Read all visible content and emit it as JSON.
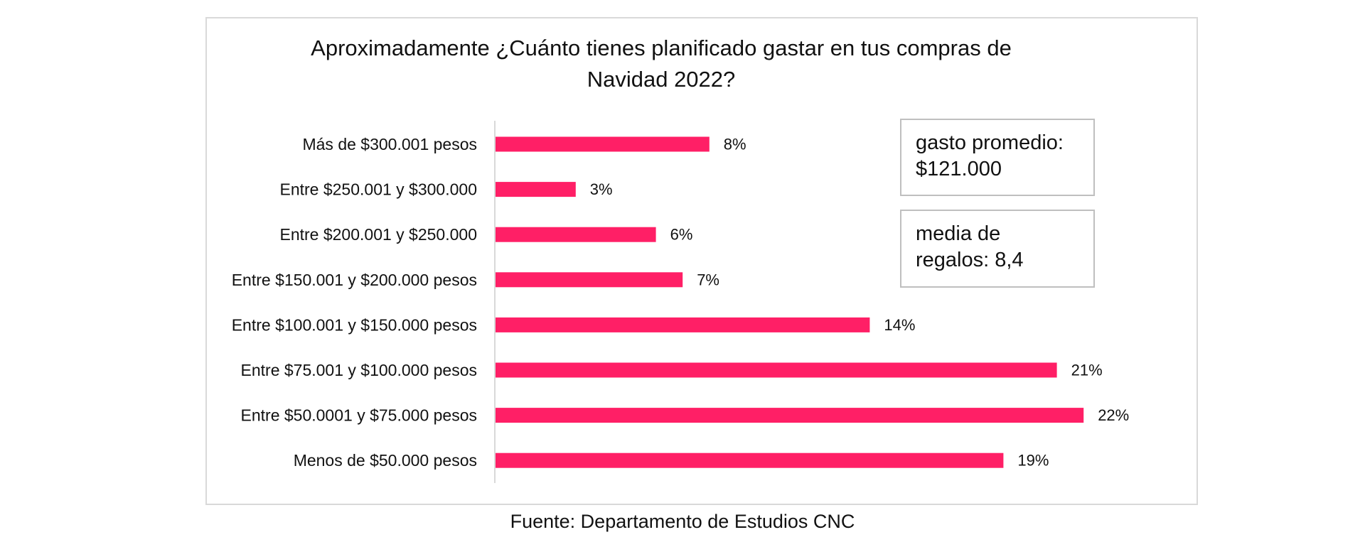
{
  "chart_data": {
    "type": "bar",
    "orientation": "horizontal",
    "title_line1": "Aproximadamente ¿Cuánto tienes planificado gastar   en tus compras de",
    "title_line2": "Navidad 2022?",
    "categories": [
      "Más de $300.001 pesos",
      "Entre $250.001 y $300.000",
      "Entre $200.001 y $250.000",
      "Entre $150.001 y $200.000 pesos",
      "Entre $100.001 y $150.000 pesos",
      "Entre $75.001 y $100.000 pesos",
      "Entre $50.0001 y $75.000 pesos",
      "Menos de $50.000 pesos"
    ],
    "values": [
      8,
      3,
      6,
      7,
      14,
      21,
      22,
      19
    ],
    "value_labels": [
      "8%",
      "3%",
      "6%",
      "7%",
      "14%",
      "21%",
      "22%",
      "19%"
    ],
    "unit": "%",
    "xlim": [
      0,
      24
    ],
    "grid": false,
    "legend": "none",
    "bar_color": "#ff1f66"
  },
  "annotations": {
    "box1_line1": "gasto promedio:",
    "box1_line2": "$121.000",
    "box2_line1": "media de",
    "box2_line2": "regalos: 8,4"
  },
  "source": "Fuente: Departamento de Estudios CNC"
}
